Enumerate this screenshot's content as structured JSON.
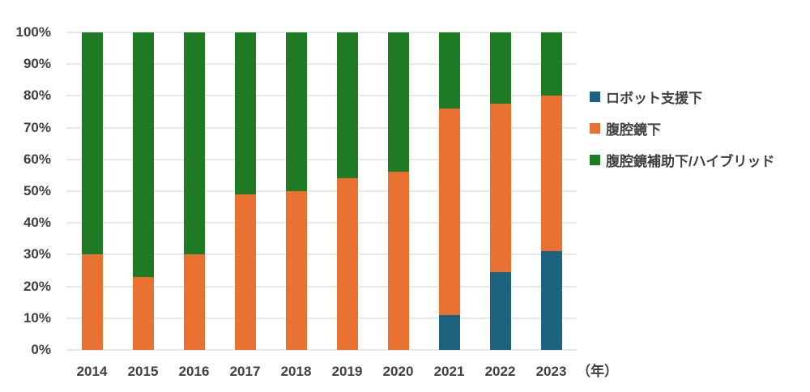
{
  "chart_data": {
    "type": "bar",
    "stacked": true,
    "percent": true,
    "title": "",
    "xlabel": "",
    "ylabel": "",
    "x_unit_label": "（年）",
    "categories": [
      "2014",
      "2015",
      "2016",
      "2017",
      "2018",
      "2019",
      "2020",
      "2021",
      "2022",
      "2023"
    ],
    "series": [
      {
        "name": "ロボット支援下",
        "color": "#1d627f",
        "values": [
          0,
          0,
          0,
          0,
          0,
          0,
          0,
          11,
          24.5,
          31
        ]
      },
      {
        "name": "腹腔鏡下",
        "color": "#e97132",
        "values": [
          30,
          23,
          30,
          49,
          50,
          54,
          56,
          65,
          53,
          49
        ]
      },
      {
        "name": "腹腔鏡補助下/ハイブリッド",
        "color": "#1f7b23",
        "values": [
          70,
          77,
          70,
          51,
          50,
          46,
          44,
          24,
          22.5,
          20
        ]
      }
    ],
    "y_ticks": [
      "0%",
      "10%",
      "20%",
      "30%",
      "40%",
      "50%",
      "60%",
      "70%",
      "80%",
      "90%",
      "100%"
    ],
    "ylim": [
      0,
      100
    ],
    "grid": true,
    "gridline_color": "#e8e8e8",
    "text_color": "#404040",
    "background_color": "#ffffff",
    "legend_position": "right",
    "legend_entries": [
      "ロボット支援下",
      "腹腔鏡下",
      "腹腔鏡補助下/ハイブリッド"
    ]
  }
}
